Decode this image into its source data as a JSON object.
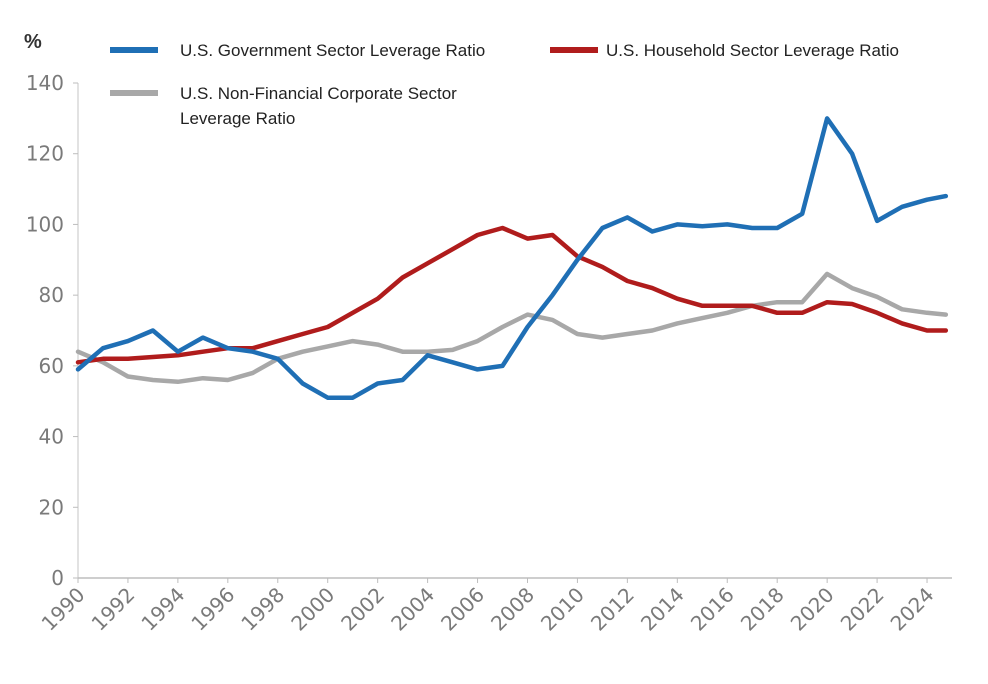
{
  "chart_data": {
    "type": "line",
    "title": "",
    "unit_label": "%",
    "xlabel": "",
    "ylabel": "%",
    "ylim": [
      0,
      140
    ],
    "yticks": [
      0,
      20,
      40,
      60,
      80,
      100,
      120,
      140
    ],
    "xlim": [
      1990,
      2025
    ],
    "xticks": [
      "1990",
      "1992",
      "1994",
      "1996",
      "1998",
      "2000",
      "2002",
      "2004",
      "2006",
      "2008",
      "2010",
      "2012",
      "2014",
      "2016",
      "2018",
      "2020",
      "2022",
      "2024"
    ],
    "grid": false,
    "legend_position": "top",
    "series": [
      {
        "name": "U.S. Government Sector Leverage Ratio",
        "color": "#1f6fb5",
        "x": [
          1990,
          1991,
          1992,
          1993,
          1994,
          1995,
          1996,
          1997,
          1998,
          1999,
          2000,
          2001,
          2002,
          2003,
          2004,
          2005,
          2006,
          2007,
          2008,
          2009,
          2010,
          2011,
          2012,
          2013,
          2014,
          2015,
          2016,
          2017,
          2018,
          2019,
          2020,
          2021,
          2022,
          2023,
          2024,
          2024.75
        ],
        "values": [
          59,
          65,
          67,
          70,
          64,
          68,
          65,
          64,
          62,
          55,
          51,
          51,
          55,
          56,
          63,
          61,
          59,
          60,
          71,
          80,
          90,
          99,
          102,
          98,
          100,
          99.5,
          100,
          99,
          99,
          103,
          130,
          120,
          101,
          105,
          107,
          108
        ]
      },
      {
        "name": "U.S. Household Sector Leverage Ratio",
        "color": "#b01c1c",
        "x": [
          1990,
          1991,
          1992,
          1993,
          1994,
          1995,
          1996,
          1997,
          1998,
          1999,
          2000,
          2001,
          2002,
          2003,
          2004,
          2005,
          2006,
          2007,
          2008,
          2009,
          2010,
          2011,
          2012,
          2013,
          2014,
          2015,
          2016,
          2017,
          2018,
          2019,
          2020,
          2021,
          2022,
          2023,
          2024,
          2024.75
        ],
        "values": [
          61,
          62,
          62,
          62.5,
          63,
          64,
          65,
          65,
          67,
          69,
          71,
          75,
          79,
          85,
          89,
          93,
          97,
          99,
          96,
          97,
          91,
          88,
          84,
          82,
          79,
          77,
          77,
          77,
          75,
          75,
          78,
          77.5,
          75,
          72,
          70,
          70
        ]
      },
      {
        "name": "U.S. Non-Financial Corporate Sector Leverage Ratio",
        "color": "#a8a8a8",
        "x": [
          1990,
          1991,
          1992,
          1993,
          1994,
          1995,
          1996,
          1997,
          1998,
          1999,
          2000,
          2001,
          2002,
          2003,
          2004,
          2005,
          2006,
          2007,
          2008,
          2009,
          2010,
          2011,
          2012,
          2013,
          2014,
          2015,
          2016,
          2017,
          2018,
          2019,
          2020,
          2021,
          2022,
          2023,
          2024,
          2024.75
        ],
        "values": [
          64,
          61,
          57,
          56,
          55.5,
          56.5,
          56,
          58,
          62,
          64,
          65.5,
          67,
          66,
          64,
          64,
          64.5,
          67,
          71,
          74.5,
          73,
          69,
          68,
          69,
          70,
          72,
          73.5,
          75,
          77,
          78,
          78,
          86,
          82,
          79.5,
          76,
          75,
          74.5
        ]
      }
    ]
  },
  "legend_labels": {
    "gov": "U.S. Government Sector Leverage Ratio",
    "household": "U.S. Household Sector Leverage Ratio",
    "corp_line1": "U.S. Non-Financial Corporate Sector",
    "corp_line2": "Leverage Ratio"
  }
}
